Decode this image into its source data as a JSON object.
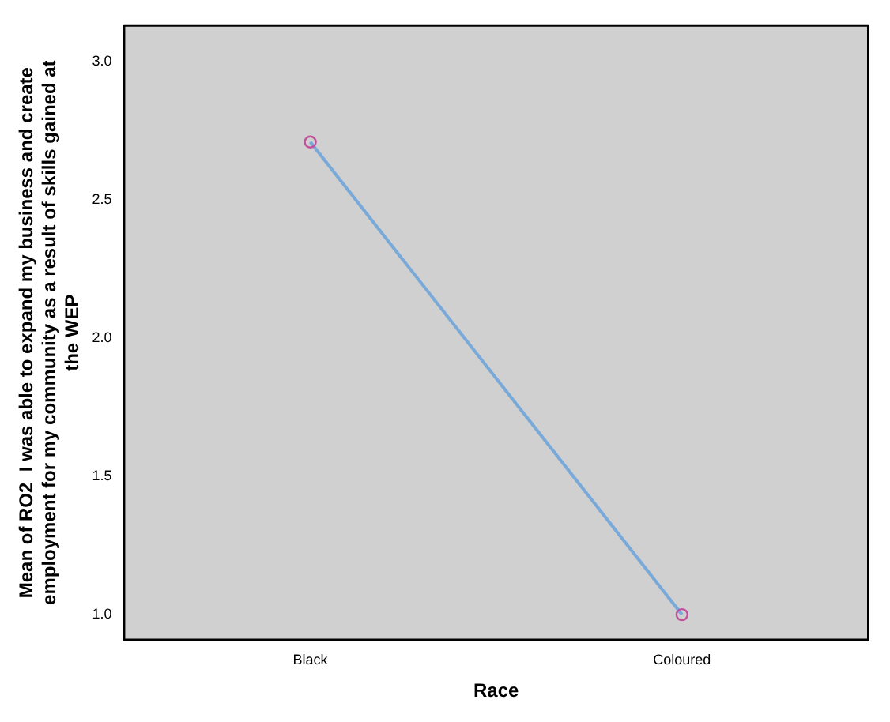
{
  "chart_data": {
    "type": "line",
    "xlabel": "Race",
    "ylabel": [
      "Mean of RO2  I was able to expand my business and create",
      "employment for my community as a result of skills gained at",
      "the WEP"
    ],
    "categories": [
      "Black",
      "Coloured"
    ],
    "series": [
      {
        "color": "#79a9d8",
        "values": [
          2.71,
          1.0
        ]
      }
    ],
    "ylim": [
      0.91,
      3.13
    ],
    "yticks": [
      {
        "value": 1,
        "label": "1.0"
      },
      {
        "value": 1.5,
        "label": "1.5"
      },
      {
        "value": 2,
        "label": "2.0"
      },
      {
        "value": 2.5,
        "label": "2.5"
      },
      {
        "value": 3,
        "label": "3.0"
      }
    ],
    "grid": false,
    "legend": false,
    "marker": "circle",
    "line_style": "solid"
  }
}
